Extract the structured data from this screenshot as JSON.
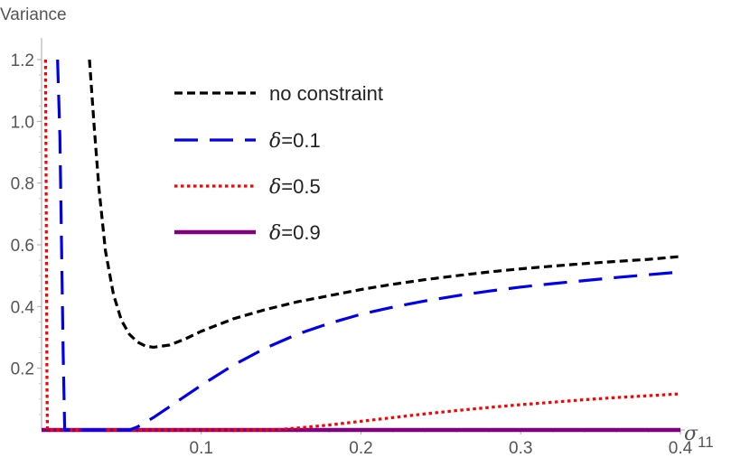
{
  "chart_data": {
    "type": "line",
    "ylabel": "Variance",
    "xlabel": "σ11",
    "xlabel_main": "σ",
    "xlabel_sub": "11",
    "xlim": [
      0,
      0.4
    ],
    "ylim": [
      0,
      1.2
    ],
    "x_ticks": [
      0.1,
      0.2,
      0.3,
      0.4
    ],
    "x_tick_labels": [
      "0.1",
      "0.2",
      "0.3",
      "0.4"
    ],
    "y_ticks": [
      0.2,
      0.4,
      0.6,
      0.8,
      1.0,
      1.2
    ],
    "y_tick_labels": [
      "0.2",
      "0.4",
      "0.6",
      "0.8",
      "1.0",
      "1.2"
    ],
    "legend_position": "top-center",
    "series": [
      {
        "name": "no constraint",
        "legend_symbol": "",
        "legend_value": "no constraint",
        "color": "#000000",
        "dash": "short-dash",
        "x": [
          0.03,
          0.033,
          0.036,
          0.04,
          0.045,
          0.05,
          0.055,
          0.06,
          0.065,
          0.07,
          0.08,
          0.09,
          0.1,
          0.12,
          0.14,
          0.16,
          0.18,
          0.2,
          0.22,
          0.24,
          0.26,
          0.28,
          0.3,
          0.32,
          0.34,
          0.36,
          0.38,
          0.4
        ],
        "y": [
          1.2,
          0.98,
          0.78,
          0.58,
          0.44,
          0.355,
          0.31,
          0.285,
          0.272,
          0.268,
          0.275,
          0.295,
          0.32,
          0.36,
          0.39,
          0.415,
          0.435,
          0.455,
          0.472,
          0.487,
          0.5,
          0.512,
          0.522,
          0.531,
          0.539,
          0.546,
          0.553,
          0.562
        ]
      },
      {
        "name": "δ=0.1",
        "legend_symbol": "δ",
        "legend_value": "=0.1",
        "color": "#0000ee",
        "dash": "long-dash",
        "x": [
          0.01,
          0.0115,
          0.0125,
          0.0135,
          0.0145,
          0.03,
          0.05,
          0.055,
          0.06,
          0.07,
          0.08,
          0.09,
          0.1,
          0.12,
          0.14,
          0.16,
          0.18,
          0.2,
          0.22,
          0.24,
          0.26,
          0.28,
          0.3,
          0.32,
          0.34,
          0.36,
          0.38,
          0.4
        ],
        "y": [
          1.2,
          0.95,
          0.6,
          0.25,
          0.0,
          0.0,
          0.0,
          0.0,
          0.01,
          0.04,
          0.075,
          0.11,
          0.145,
          0.21,
          0.265,
          0.31,
          0.345,
          0.375,
          0.398,
          0.418,
          0.435,
          0.45,
          0.463,
          0.474,
          0.484,
          0.494,
          0.503,
          0.512
        ]
      },
      {
        "name": "δ=0.5",
        "legend_symbol": "δ",
        "legend_value": "=0.5",
        "color": "#ff0000",
        "dash": "dotted",
        "x": [
          0.0025,
          0.0028,
          0.0031,
          0.0034,
          0.0037,
          0.05,
          0.1,
          0.14,
          0.15,
          0.16,
          0.18,
          0.2,
          0.22,
          0.24,
          0.26,
          0.28,
          0.3,
          0.32,
          0.34,
          0.36,
          0.38,
          0.4
        ],
        "y": [
          1.2,
          0.9,
          0.5,
          0.15,
          0.0,
          0.0,
          0.0,
          0.0,
          0.002,
          0.006,
          0.016,
          0.028,
          0.04,
          0.052,
          0.063,
          0.073,
          0.082,
          0.09,
          0.098,
          0.105,
          0.111,
          0.117
        ]
      },
      {
        "name": "δ=0.9",
        "legend_symbol": "δ",
        "legend_value": "=0.9",
        "color": "#800080",
        "dash": "solid",
        "x": [
          0.0,
          0.4
        ],
        "y": [
          0.0,
          0.0
        ]
      }
    ]
  }
}
